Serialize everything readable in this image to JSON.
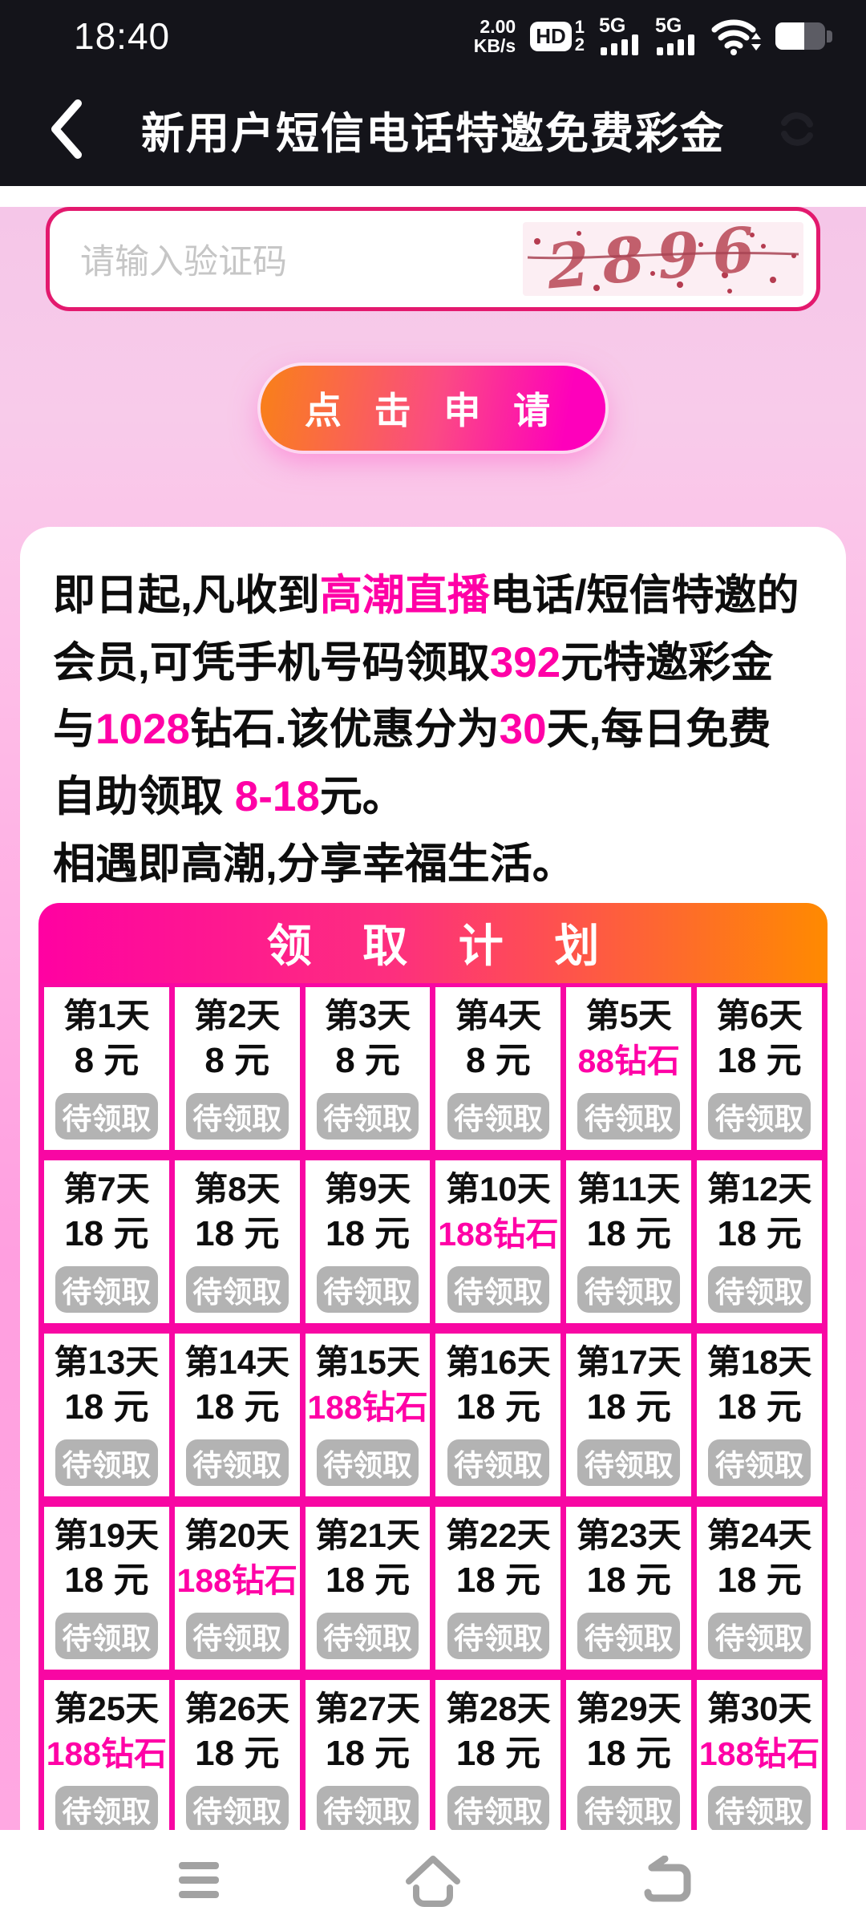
{
  "status_bar": {
    "time": "18:40",
    "net_speed_value": "2.00",
    "net_speed_unit": "KB/s",
    "hd_label": "HD",
    "sim_top": "1",
    "sim_bottom": "2",
    "network_1": "5G",
    "network_2": "5G"
  },
  "header": {
    "title": "新用户短信电话特邀免费彩金"
  },
  "captcha": {
    "placeholder": "请输入验证码",
    "code": "2896"
  },
  "apply_button": {
    "label": "点 击 申 请"
  },
  "promo": {
    "paragraph1": [
      {
        "text": "即日起,凡收到",
        "hl": false
      },
      {
        "text": "高潮直播",
        "hl": true
      },
      {
        "text": "电话/短信特邀的会员,可凭手机号码领取",
        "hl": false
      },
      {
        "text": "392",
        "hl": true
      },
      {
        "text": "元特邀彩金与",
        "hl": false
      },
      {
        "text": "1028",
        "hl": true
      },
      {
        "text": "钻石.该优惠分为",
        "hl": false
      },
      {
        "text": "30",
        "hl": true
      },
      {
        "text": "天,每日免费自助领取 ",
        "hl": false
      },
      {
        "text": "8-18",
        "hl": true
      },
      {
        "text": "元。",
        "hl": false
      }
    ],
    "paragraph2": "相遇即高潮,分享幸福生活。"
  },
  "plan": {
    "title": "领 取 计 划",
    "status_label": "待领取",
    "days": [
      {
        "day": "第1天",
        "amount": "8 元",
        "diamond": false
      },
      {
        "day": "第2天",
        "amount": "8 元",
        "diamond": false
      },
      {
        "day": "第3天",
        "amount": "8 元",
        "diamond": false
      },
      {
        "day": "第4天",
        "amount": "8 元",
        "diamond": false
      },
      {
        "day": "第5天",
        "amount": "88钻石",
        "diamond": true
      },
      {
        "day": "第6天",
        "amount": "18 元",
        "diamond": false
      },
      {
        "day": "第7天",
        "amount": "18 元",
        "diamond": false
      },
      {
        "day": "第8天",
        "amount": "18 元",
        "diamond": false
      },
      {
        "day": "第9天",
        "amount": "18 元",
        "diamond": false
      },
      {
        "day": "第10天",
        "amount": "188钻石",
        "diamond": true
      },
      {
        "day": "第11天",
        "amount": "18 元",
        "diamond": false
      },
      {
        "day": "第12天",
        "amount": "18 元",
        "diamond": false
      },
      {
        "day": "第13天",
        "amount": "18 元",
        "diamond": false
      },
      {
        "day": "第14天",
        "amount": "18 元",
        "diamond": false
      },
      {
        "day": "第15天",
        "amount": "188钻石",
        "diamond": true
      },
      {
        "day": "第16天",
        "amount": "18 元",
        "diamond": false
      },
      {
        "day": "第17天",
        "amount": "18 元",
        "diamond": false
      },
      {
        "day": "第18天",
        "amount": "18 元",
        "diamond": false
      },
      {
        "day": "第19天",
        "amount": "18 元",
        "diamond": false
      },
      {
        "day": "第20天",
        "amount": "188钻石",
        "diamond": true
      },
      {
        "day": "第21天",
        "amount": "18 元",
        "diamond": false
      },
      {
        "day": "第22天",
        "amount": "18 元",
        "diamond": false
      },
      {
        "day": "第23天",
        "amount": "18 元",
        "diamond": false
      },
      {
        "day": "第24天",
        "amount": "18 元",
        "diamond": false
      },
      {
        "day": "第25天",
        "amount": "188钻石",
        "diamond": true
      },
      {
        "day": "第26天",
        "amount": "18 元",
        "diamond": false
      },
      {
        "day": "第27天",
        "amount": "18 元",
        "diamond": false
      },
      {
        "day": "第28天",
        "amount": "18 元",
        "diamond": false
      },
      {
        "day": "第29天",
        "amount": "18 元",
        "diamond": false
      },
      {
        "day": "第30天",
        "amount": "188钻石",
        "diamond": true
      }
    ]
  },
  "colors": {
    "accent_magenta": "#f807a3",
    "highlight_text": "#ff01a6",
    "captcha_border": "#e3196e",
    "plan_header_gradient": [
      "#ff01a2",
      "#ff8a00"
    ],
    "apply_button_gradient": [
      "#f98117",
      "#fe00bb"
    ],
    "pill_gray": "#b3b3b3",
    "statusbar_black": "#14141a",
    "page_pink": "#ffa6e1"
  }
}
